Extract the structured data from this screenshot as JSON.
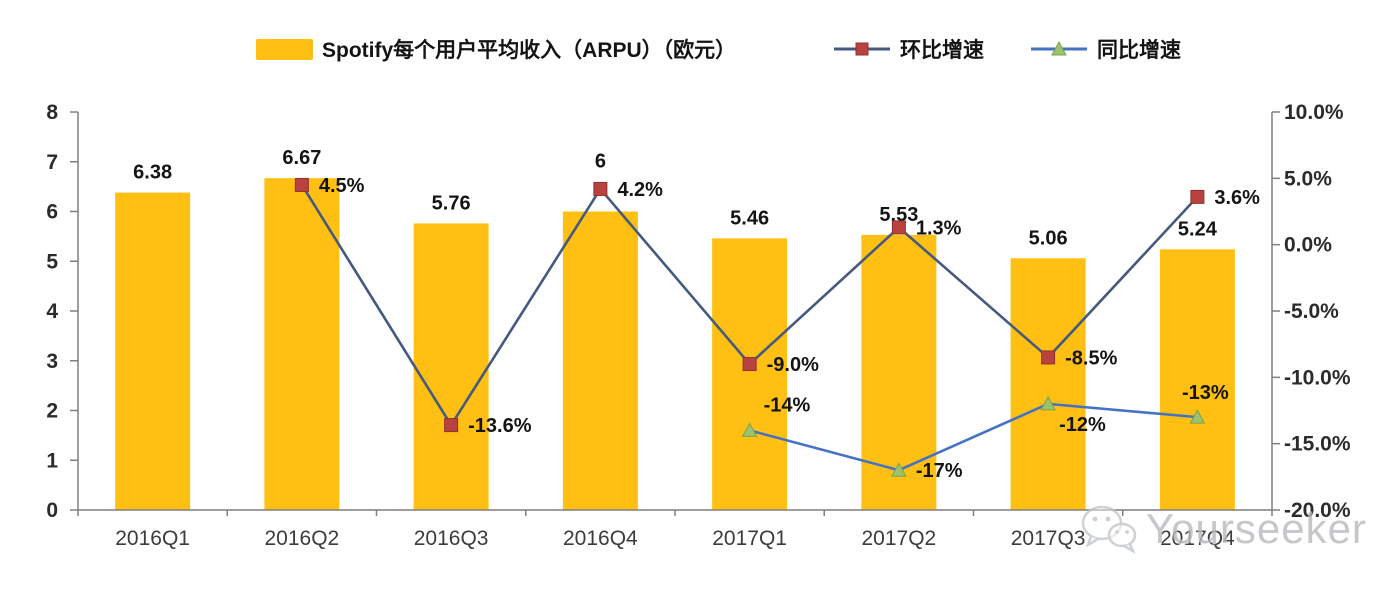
{
  "legend": {
    "arpu_label": "Spotify每个用户平均收入（ARPU）（欧元）",
    "qoq_label": "环比增速",
    "yoy_label": "同比增速"
  },
  "watermark": {
    "brand": "Yourseeker",
    "icon": "wechat-icon"
  },
  "colors": {
    "bar": "#FFC013",
    "qoq_line": "#46597F",
    "qoq_marker_fill": "#B9423E",
    "qoq_marker_stroke": "#8E3330",
    "yoy_line": "#4672C4",
    "yoy_marker_fill": "#9CC26E",
    "yoy_marker_stroke": "#7BA34C",
    "axis": "#7F7F7F",
    "label_text": "#141414",
    "tick_text": "#2B2B2B",
    "xlabel_text": "#3C3C3C",
    "watermark": "#B8BABD"
  },
  "chart_data": {
    "type": "bar",
    "title": "",
    "xlabel": "",
    "ylabel_left": "",
    "ylabel_right": "",
    "grid": false,
    "legend_position": "top",
    "categories": [
      "2016Q1",
      "2016Q2",
      "2016Q3",
      "2016Q4",
      "2017Q1",
      "2017Q2",
      "2017Q3",
      "2017Q4"
    ],
    "series": [
      {
        "name": "Spotify每个用户平均收入（ARPU）（欧元）",
        "type": "bar",
        "axis": "left",
        "values": [
          6.38,
          6.67,
          5.76,
          6,
          5.46,
          5.53,
          5.06,
          5.24
        ],
        "labels": [
          "6.38",
          "6.67",
          "5.76",
          "6",
          "5.46",
          "5.53",
          "5.06",
          "5.24"
        ]
      },
      {
        "name": "环比增速",
        "type": "line",
        "marker": "square",
        "axis": "right",
        "values": [
          null,
          4.5,
          -13.6,
          4.2,
          -9,
          1.3,
          -8.5,
          3.6
        ],
        "labels": [
          null,
          "4.5%",
          "-13.6%",
          "4.2%",
          "-9.0%",
          "1.3%",
          "-8.5%",
          "3.6%"
        ]
      },
      {
        "name": "同比增速",
        "type": "line",
        "marker": "triangle",
        "axis": "right",
        "values": [
          null,
          null,
          null,
          null,
          -14,
          -17,
          -12,
          -13
        ],
        "labels": [
          null,
          null,
          null,
          null,
          "-14%",
          "-17%",
          "-12%",
          "-13%"
        ]
      }
    ],
    "left_axis": {
      "min": 0,
      "max": 8,
      "step": 1,
      "tick_labels": [
        "0",
        "1",
        "2",
        "3",
        "4",
        "5",
        "6",
        "7",
        "8"
      ]
    },
    "right_axis": {
      "min": -20,
      "max": 10,
      "step": 5,
      "tick_labels": [
        "-20.0%",
        "-15.0%",
        "-10.0%",
        "-5.0%",
        "0.0%",
        "5.0%",
        "10.0%"
      ]
    }
  }
}
